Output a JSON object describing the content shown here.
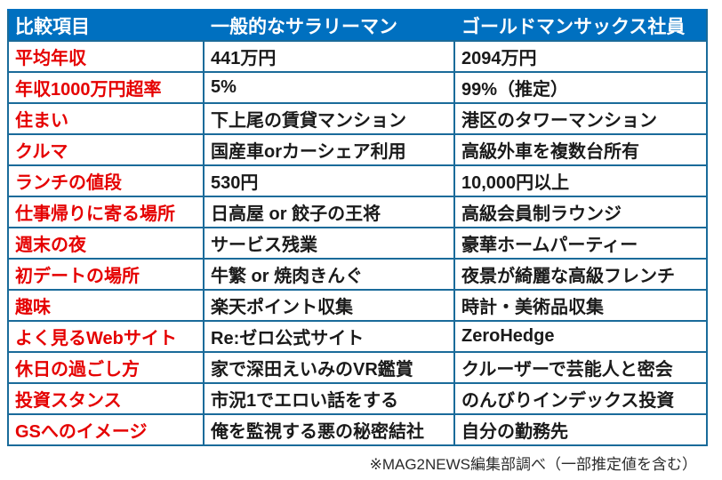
{
  "chart_data": {
    "type": "table",
    "columns": [
      "比較項目",
      "一般的なサラリーマン",
      "ゴールドマンサックス社員"
    ],
    "rows": [
      [
        "平均年収",
        "441万円",
        "2094万円"
      ],
      [
        "年収1000万円超率",
        "5%",
        "99%（推定）"
      ],
      [
        "住まい",
        "下上尾の賃貸マンション",
        "港区のタワーマンション"
      ],
      [
        "クルマ",
        "国産車orカーシェア利用",
        "高級外車を複数台所有"
      ],
      [
        "ランチの値段",
        "530円",
        "10,000円以上"
      ],
      [
        "仕事帰りに寄る場所",
        "日高屋 or 餃子の王将",
        "高級会員制ラウンジ"
      ],
      [
        "週末の夜",
        "サービス残業",
        "豪華ホームパーティー"
      ],
      [
        "初デートの場所",
        "牛繁 or 焼肉きんぐ",
        "夜景が綺麗な高級フレンチ"
      ],
      [
        "趣味",
        "楽天ポイント収集",
        "時計・美術品収集"
      ],
      [
        "よく見るWebサイト",
        "Re:ゼロ公式サイト",
        "ZeroHedge"
      ],
      [
        "休日の過ごし方",
        "家で深田えいみのVR鑑賞",
        "クルーザーで芸能人と密会"
      ],
      [
        "投資スタンス",
        "市況1でエロい話をする",
        "のんびりインデックス投資"
      ],
      [
        "GSへのイメージ",
        "俺を監視する悪の秘密結社",
        "自分の勤務先"
      ]
    ],
    "source_note": "※MAG2NEWS編集部調べ（一部推定値を含む）",
    "legend_position": "none",
    "grid": true
  },
  "colors": {
    "header_bg": "#0070C0",
    "border": "#1A6B9A",
    "label_red": "#E50000",
    "value_text": "#1A1A1A",
    "header_text": "#FFFFFF",
    "page_bg": "#FFFFFF"
  }
}
